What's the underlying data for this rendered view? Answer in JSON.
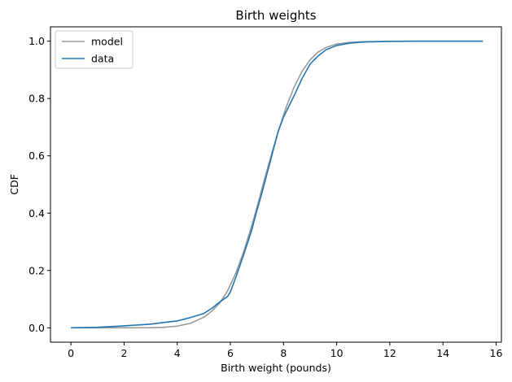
{
  "chart_data": {
    "type": "line",
    "title": "Birth weights",
    "xlabel": "Birth weight (pounds)",
    "ylabel": "CDF",
    "xlim": [
      -0.77,
      16.2
    ],
    "ylim": [
      -0.05,
      1.05
    ],
    "xticks": [
      0,
      2,
      4,
      6,
      8,
      10,
      12,
      14,
      16
    ],
    "yticks": [
      0.0,
      0.2,
      0.4,
      0.6,
      0.8,
      1.0
    ],
    "xtick_labels": [
      "0",
      "2",
      "4",
      "6",
      "8",
      "10",
      "12",
      "14",
      "16"
    ],
    "ytick_labels": [
      "0.0",
      "0.2",
      "0.4",
      "0.6",
      "0.8",
      "1.0"
    ],
    "grid": false,
    "legend_position": "top-left",
    "series": [
      {
        "name": "model",
        "color": "#999999",
        "x": [
          0,
          1,
          2,
          3,
          3.5,
          4,
          4.5,
          5,
          5.3,
          5.6,
          5.9,
          6.2,
          6.5,
          6.8,
          7.0,
          7.2,
          7.5,
          7.8,
          8.1,
          8.4,
          8.7,
          9.0,
          9.3,
          9.6,
          10.0,
          10.5,
          11.0,
          12.0,
          13.0,
          15.5
        ],
        "y": [
          0.0,
          0.0,
          0.0,
          0.0006,
          0.002,
          0.006,
          0.016,
          0.037,
          0.058,
          0.087,
          0.13,
          0.19,
          0.265,
          0.355,
          0.42,
          0.49,
          0.59,
          0.685,
          0.77,
          0.84,
          0.895,
          0.935,
          0.962,
          0.978,
          0.99,
          0.996,
          0.998,
          0.9995,
          1.0,
          1.0
        ]
      },
      {
        "name": "data",
        "color": "#1f77b4",
        "x": [
          0,
          1,
          2,
          3,
          3.5,
          4,
          4.5,
          5,
          5.3,
          5.6,
          5.9,
          6.0,
          6.2,
          6.5,
          6.8,
          7.0,
          7.2,
          7.5,
          7.8,
          8.0,
          8.4,
          8.7,
          9.0,
          9.3,
          9.6,
          10.0,
          10.5,
          11.0,
          12.0,
          13.0,
          15.5
        ],
        "y": [
          0.0,
          0.002,
          0.007,
          0.013,
          0.019,
          0.024,
          0.036,
          0.05,
          0.068,
          0.09,
          0.11,
          0.125,
          0.175,
          0.255,
          0.34,
          0.41,
          0.475,
          0.58,
          0.685,
          0.735,
          0.81,
          0.87,
          0.92,
          0.948,
          0.97,
          0.985,
          0.993,
          0.997,
          0.999,
          1.0,
          1.0
        ]
      }
    ]
  }
}
